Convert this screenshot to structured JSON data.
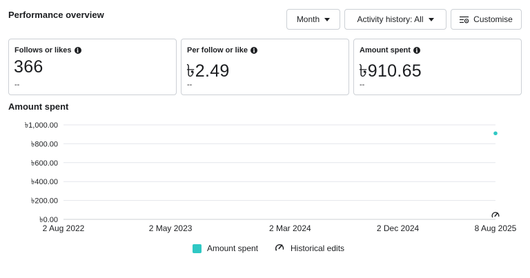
{
  "header": {
    "title": "Performance overview",
    "month_label": "Month",
    "activity_label": "Activity history: All",
    "customise_label": "Customise"
  },
  "cards": [
    {
      "label": "Follows or likes",
      "value": "366",
      "delta": "--"
    },
    {
      "label": "Per follow or like",
      "value": "৳2.49",
      "delta": "--"
    },
    {
      "label": "Amount spent",
      "value": "৳910.65",
      "delta": "--"
    }
  ],
  "icons": {
    "info": "info-icon",
    "caret": "chevron-down-icon",
    "customise": "sliders-icon",
    "historical_edit": "edit-history-icon"
  },
  "colors": {
    "series": "#2fc8c4",
    "grid": "#e4e6eb",
    "border": "#ccd0d5"
  },
  "chart_section_title": "Amount spent",
  "chart_data": {
    "type": "scatter",
    "title": "Amount spent",
    "xlabel": "",
    "ylabel": "",
    "x_tick_labels": [
      "2 Aug 2022",
      "2 May 2023",
      "2 Mar 2024",
      "2 Dec 2024",
      "8 Aug 2025"
    ],
    "y_tick_labels": [
      "৳1,000.00",
      "৳800.00",
      "৳600.00",
      "৳400.00",
      "৳200.00",
      "৳0.00"
    ],
    "y_ticks": [
      1000,
      800,
      600,
      400,
      200,
      0
    ],
    "ylim": [
      0,
      1000
    ],
    "x_ticks": [
      "2022-08-02",
      "2023-05-02",
      "2024-03-02",
      "2024-12-02",
      "2025-08-08"
    ],
    "xlim": [
      "2022-08-02",
      "2025-08-08"
    ],
    "grid": true,
    "legend_position": "bottom",
    "series": [
      {
        "name": "Amount spent",
        "color": "#2fc8c4",
        "points": [
          {
            "x": "2025-08-08",
            "y": 910.65
          }
        ]
      }
    ],
    "annotations": [
      {
        "x": "2025-08-08",
        "type": "historical-edit"
      }
    ]
  },
  "legend": {
    "amount_spent": "Amount spent",
    "historical_edits": "Historical edits"
  }
}
